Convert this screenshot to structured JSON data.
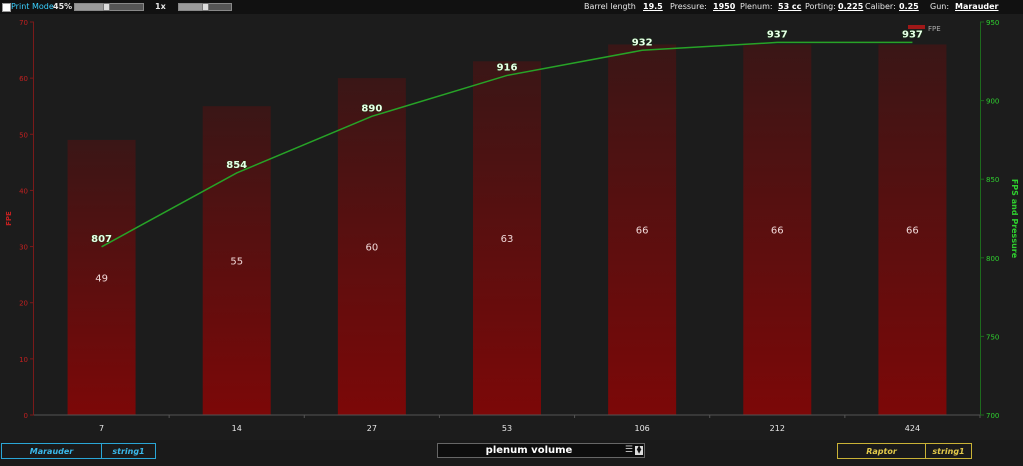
{
  "toolbar": {
    "print_mode_label": "Print Mode",
    "zoom_value": "45%",
    "zoom_fraction": 0.45,
    "speed_value": "1x",
    "speed_fraction": 0.5,
    "barrel_label": "Barrel length",
    "barrel_value": "19.5",
    "pressure_label": "Pressure:",
    "pressure_value": "1950",
    "plenum_label": "Plenum:",
    "plenum_value": "53 cc",
    "porting_label": "Porting:",
    "porting_value": "0.225",
    "caliber_label": "Caliber:",
    "caliber_value": "0.25",
    "gun_label": "Gun:",
    "gun_value": "Marauder"
  },
  "chart_data": {
    "type": "bar",
    "categories": [
      "7",
      "14",
      "27",
      "53",
      "106",
      "212",
      "424"
    ],
    "series": [
      {
        "name": "FPE",
        "type": "bar",
        "axis": "left",
        "values": [
          49,
          55,
          60,
          63,
          66,
          66,
          66
        ],
        "color": "#8c1010"
      },
      {
        "name": "",
        "type": "line",
        "axis": "right",
        "values": [
          807,
          854,
          890,
          916,
          932,
          937,
          937
        ],
        "color": "#27a327"
      }
    ],
    "y_left": {
      "label": "FPE",
      "ylim": [
        0,
        70
      ],
      "ticks": [
        "0",
        "10",
        "20",
        "30",
        "40",
        "50",
        "60",
        "70"
      ],
      "color": "#c02020"
    },
    "y_right": {
      "label": "FPS and Pressure",
      "ylim": [
        700,
        950
      ],
      "ticks": [
        "700",
        "750",
        "800",
        "850",
        "900",
        "950"
      ],
      "color": "#2fd02f"
    },
    "legend_label": "FPE",
    "legend_position": "top-right",
    "grid": false
  },
  "bottom": {
    "left_tags": [
      "Marauder",
      "string1"
    ],
    "selector_value": "plenum volume",
    "right_tags": [
      "Raptor",
      "string1"
    ]
  },
  "icons": {
    "menu": "menu-icon",
    "stepper": "stepper-icon"
  }
}
